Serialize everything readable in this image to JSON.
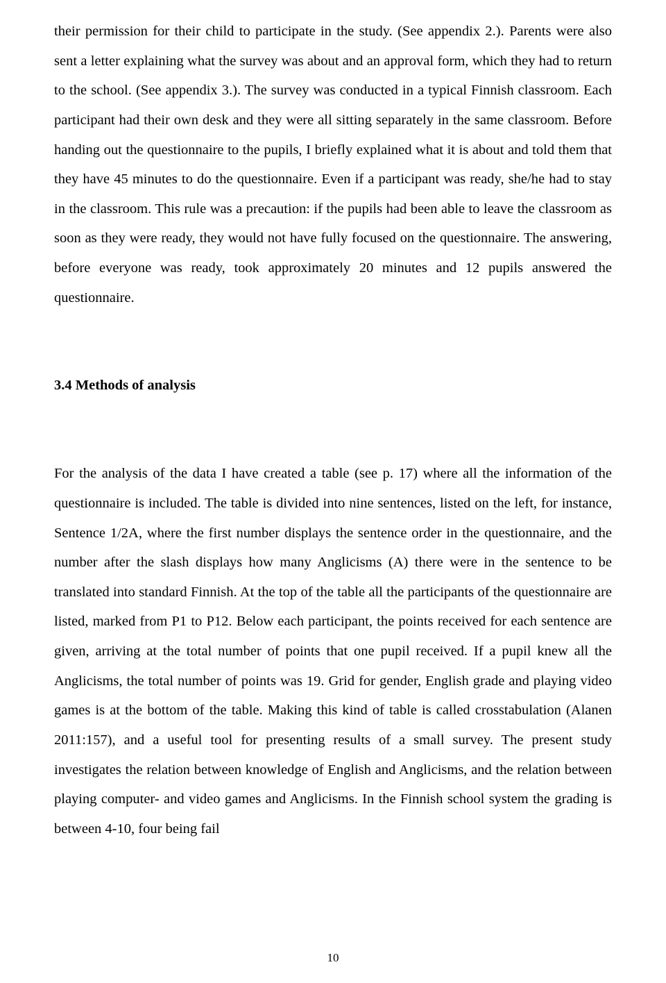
{
  "body": {
    "paragraph1": "their permission for their child to participate in the study. (See appendix 2.). Parents were also sent a letter explaining what the survey was about and an approval form, which they had to return to the school. (See appendix 3.). The survey was conducted in a typical Finnish classroom. Each participant had their own desk and they were all sitting separately in the same classroom. Before handing out the questionnaire to the pupils, I briefly explained what it is about and told them that they have 45 minutes to do the questionnaire. Even if a participant was ready, she/he had to stay in the classroom. This rule was a precaution: if the pupils had been able to leave the classroom as soon as they were ready, they would not have fully focused on the questionnaire. The answering, before everyone was ready, took approximately 20 minutes and 12 pupils answered the questionnaire.",
    "heading": "3.4 Methods of analysis",
    "paragraph2": "For the analysis of the data I have created a table (see p. 17) where all the information of the questionnaire is included. The table is divided into nine sentences, listed on the left, for instance, Sentence 1/2A, where the first number displays the sentence order in the questionnaire, and the number after the slash displays how many Anglicisms (A) there were in the sentence to be translated into standard Finnish. At the top of the table all the participants of the questionnaire are listed, marked from P1 to P12. Below each participant, the points received for each sentence are given, arriving at the total number of points that one pupil received. If a pupil knew all the Anglicisms, the total number of points was 19. Grid for gender, English grade and playing video games is at the bottom of the table. Making this kind of table is called crosstabulation (Alanen 2011:157), and a useful tool for presenting results of a small survey. The present study investigates the relation between knowledge of English and Anglicisms, and the relation between playing computer- and video games and Anglicisms. In the Finnish school system the grading is between 4-10, four being fail"
  },
  "page_number": "10"
}
